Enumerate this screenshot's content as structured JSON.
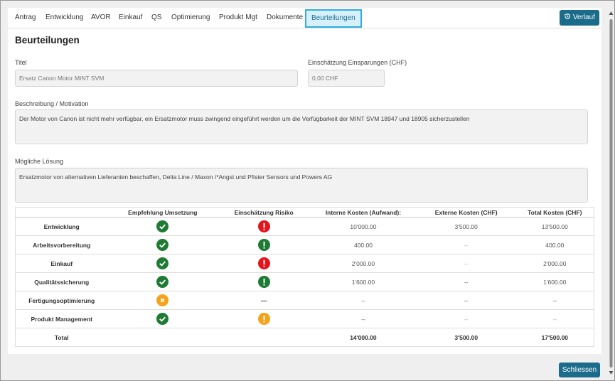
{
  "tabs": [
    "Antrag",
    "Entwicklung",
    "AVOR",
    "Einkauf",
    "QS",
    "Optimierung",
    "Produkt Mgt",
    "Dokumente",
    "Beurteilungen"
  ],
  "buttons": {
    "history": "Verlauf",
    "close": "Schliessen"
  },
  "heading": "Beurteilungen",
  "form": {
    "title_label": "Titel",
    "title_value": "Ersatz Canon Motor MINT SVM",
    "savings_label": "Einschätzung Einsparungen (CHF)",
    "savings_value": "0,00 CHF",
    "description_label": "Beschreibung / Motivation",
    "description_value": "Der Motor von Canon ist nicht mehr verfügbar, ein Ersatzmotor muss zwingend eingeführt werden um die Verfügbarkeit der MINT SVM 18947 und 18905 sicherzustellen",
    "solution_label": "Mögliche Lösung",
    "solution_value": "Ersatzmotor von alternativen Lieferanten beschaffen, Delta Line / Maxon /*Angst und Pfister Sensors und Powers AG"
  },
  "table": {
    "header": [
      "Empfehlung Umsetzung",
      "Einschätzung Risiko",
      "Interne Kosten (Aufwand):",
      "Externe Kosten (CHF)",
      "Total Kosten (CHF)"
    ],
    "rows": [
      {
        "label": "Entwicklung",
        "internal": "10'000.00",
        "external": "3'500.00",
        "total": "13'500.00"
      },
      {
        "label": "Arbeitsvorbereitung",
        "internal": "400.00",
        "external": "--",
        "total": "400.00"
      },
      {
        "label": "Einkauf",
        "internal": "2'000.00",
        "external": "--",
        "total": "2'000.00"
      },
      {
        "label": "Qualitätssicherung",
        "internal": "1'600.00",
        "external": "--",
        "total": "1'600.00"
      },
      {
        "label": "Fertigungsoptimierung",
        "risk": "—",
        "internal": "--",
        "external": "--",
        "total": "--"
      },
      {
        "label": "Produkt Management",
        "internal": "--",
        "external": "--",
        "total": "--"
      }
    ],
    "total": {
      "label": "Total",
      "internal": "14'000.00",
      "external": "3'500.00",
      "total": "17'500.00"
    }
  }
}
